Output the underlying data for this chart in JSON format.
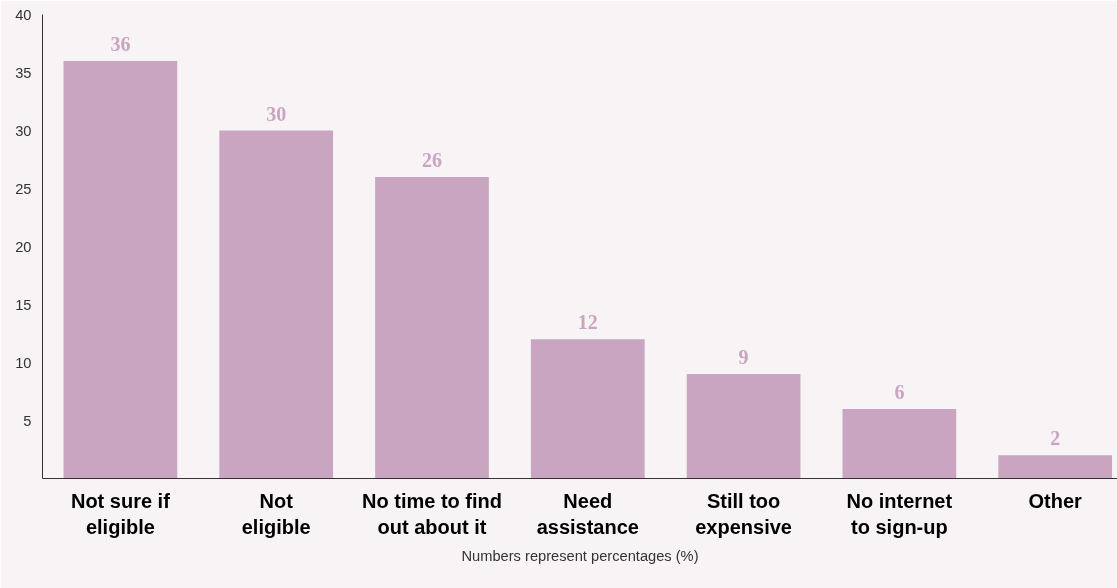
{
  "chart_data": {
    "type": "bar",
    "categories": [
      "Not sure if\neligible",
      "Not\neligible",
      "No time to find\nout about it",
      "Need\nassistance",
      "Still too\nexpensive",
      "No internet\nto sign-up",
      "Other"
    ],
    "values": [
      36,
      30,
      26,
      12,
      9,
      6,
      2
    ],
    "color": "#c9a5c2",
    "ylim": [
      0,
      40
    ],
    "yticks": [
      5,
      10,
      15,
      20,
      25,
      30,
      35,
      40
    ],
    "grid": false,
    "data_labels": true,
    "annotations": [
      "Numbers represent percentages (%)"
    ]
  }
}
